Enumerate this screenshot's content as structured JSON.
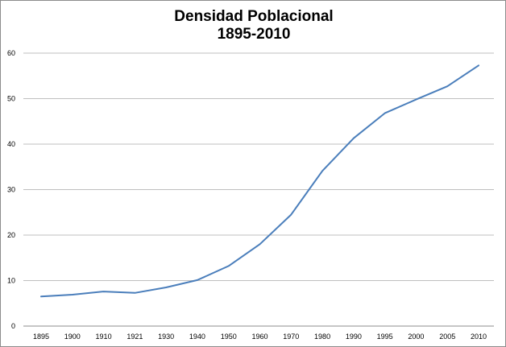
{
  "chart_data": {
    "type": "line",
    "title": "Densidad Poblacional",
    "subtitle": "1895-2010",
    "xlabel": "",
    "ylabel": "",
    "categories": [
      "1895",
      "1900",
      "1910",
      "1921",
      "1930",
      "1940",
      "1950",
      "1960",
      "1970",
      "1980",
      "1990",
      "1995",
      "2000",
      "2005",
      "2010"
    ],
    "yticks": [
      "0",
      "10",
      "20",
      "30",
      "40",
      "50",
      "60"
    ],
    "ylim": [
      0,
      60
    ],
    "grid": true,
    "legend": "none",
    "series": [
      {
        "values": [
          6.5,
          6.9,
          7.6,
          7.3,
          8.5,
          10.1,
          13.2,
          18.0,
          24.5,
          34.1,
          41.3,
          46.8,
          49.8,
          52.7,
          57.3
        ],
        "color": "#4a7ebb"
      }
    ]
  }
}
